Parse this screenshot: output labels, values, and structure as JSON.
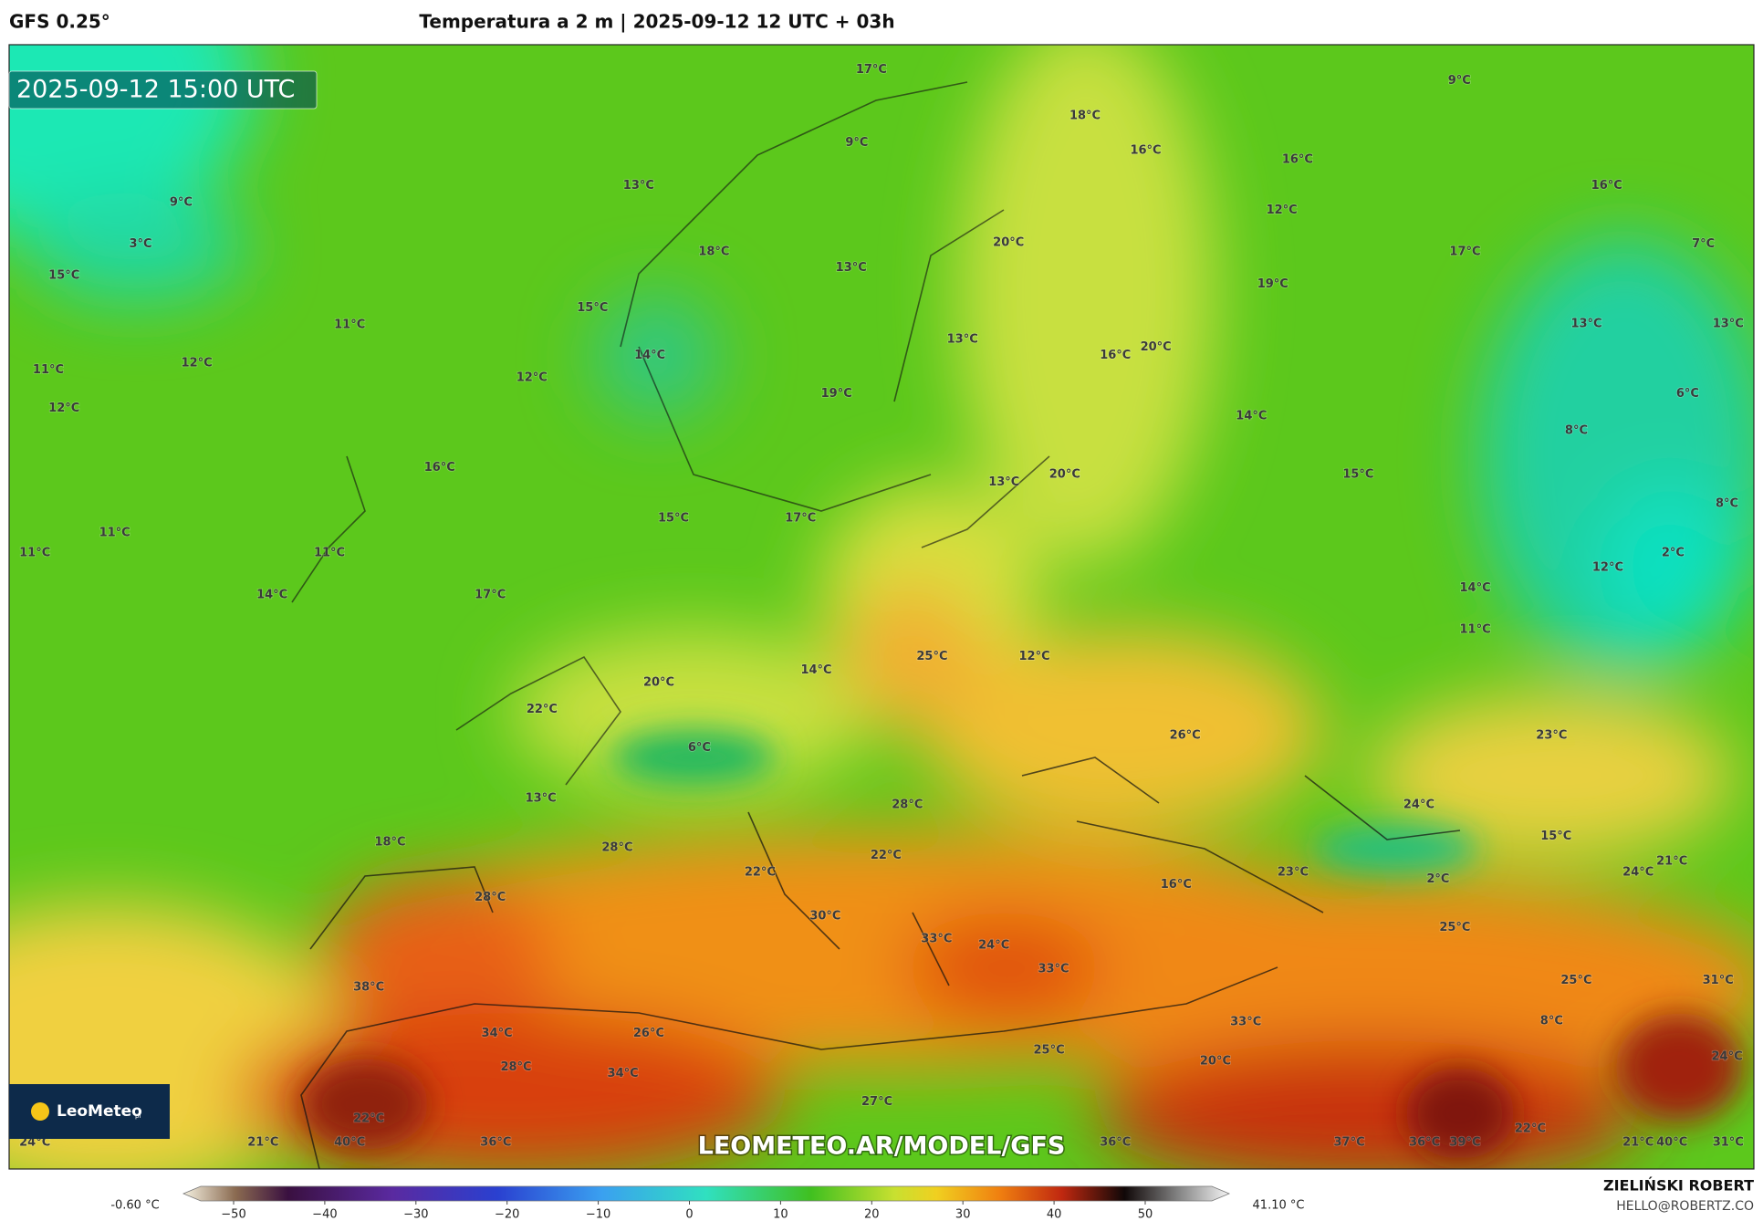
{
  "header": {
    "model": "GFS 0.25°",
    "title": "Temperatura a 2 m | 2025-09-12 12 UTC + 03h"
  },
  "map": {
    "timestamp": "2025-09-12 15:00 UTC",
    "logo": "LeoMeteo",
    "logo_suffix": "pl",
    "watermark": "LEOMETEO.AR/MODEL/GFS",
    "temperature_labels": [
      "17°C",
      "18°C",
      "9°C",
      "9°C",
      "16°C",
      "16°C",
      "16°C",
      "13°C",
      "9°C",
      "12°C",
      "3°C",
      "18°C",
      "20°C",
      "17°C",
      "7°C",
      "15°C",
      "13°C",
      "19°C",
      "15°C",
      "11°C",
      "13°C",
      "13°C",
      "13°C",
      "20°C",
      "16°C",
      "14°C",
      "11°C",
      "12°C",
      "12°C",
      "19°C",
      "6°C",
      "12°C",
      "14°C",
      "8°C",
      "16°C",
      "13°C",
      "20°C",
      "15°C",
      "8°C",
      "15°C",
      "17°C",
      "11°C",
      "11°C",
      "11°C",
      "2°C",
      "12°C",
      "14°C",
      "17°C",
      "14°C",
      "11°C",
      "25°C",
      "12°C",
      "14°C",
      "20°C",
      "22°C",
      "26°C",
      "23°C",
      "6°C",
      "13°C",
      "28°C",
      "24°C",
      "15°C",
      "18°C",
      "28°C",
      "22°C",
      "21°C",
      "22°C",
      "23°C",
      "24°C",
      "2°C",
      "16°C",
      "28°C",
      "30°C",
      "25°C",
      "33°C",
      "24°C",
      "33°C",
      "25°C",
      "31°C",
      "38°C",
      "33°C",
      "8°C",
      "34°C",
      "26°C",
      "25°C",
      "24°C",
      "28°C",
      "20°C",
      "34°C",
      "27°C",
      "22°C",
      "22°C",
      "24°C",
      "21°C",
      "40°C",
      "36°C",
      "36°C",
      "37°C",
      "36°C",
      "39°C",
      "21°C",
      "40°C",
      "31°C"
    ]
  },
  "colorbar": {
    "min_label": "-0.60 °C",
    "max_label": "41.10 °C",
    "ticks": [
      {
        "value": -50,
        "label": "−50"
      },
      {
        "value": -40,
        "label": "−40"
      },
      {
        "value": -30,
        "label": "−30"
      },
      {
        "value": -20,
        "label": "−20"
      },
      {
        "value": -10,
        "label": "−10"
      },
      0,
      10,
      20,
      30,
      40,
      50
    ]
  },
  "footer": {
    "author": "ZIELIŃSKI ROBERT",
    "contact": "HELLO@ROBERTZ.CO"
  }
}
